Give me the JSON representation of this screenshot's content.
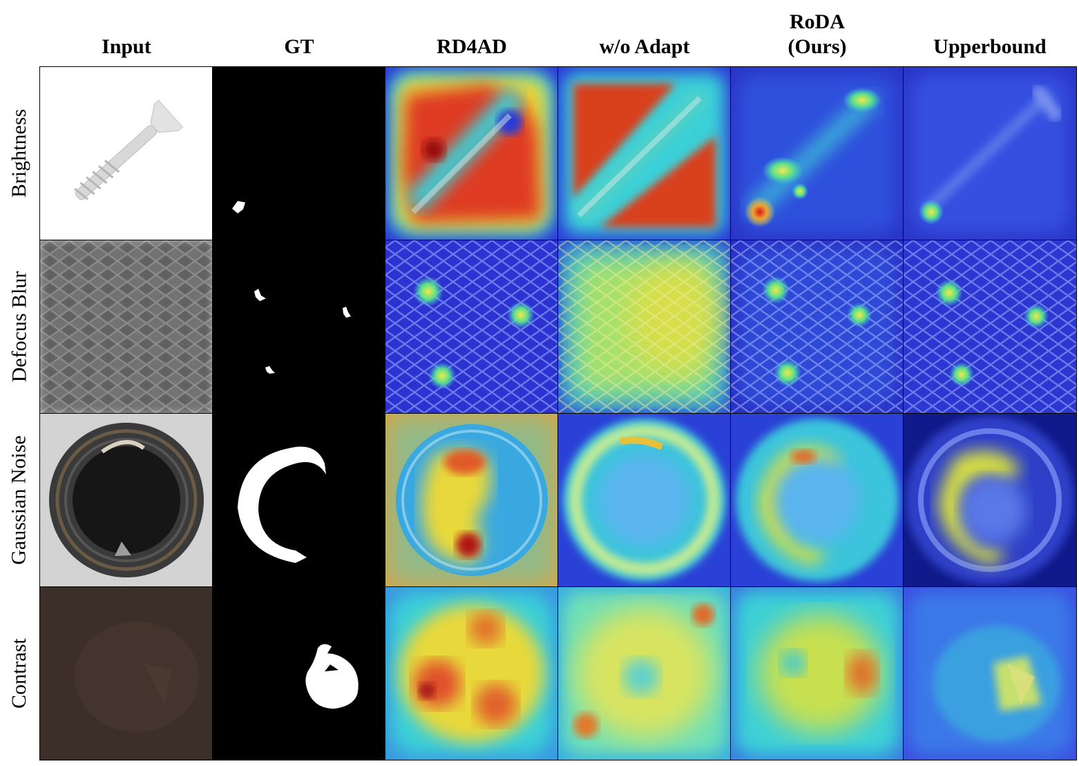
{
  "columns": [
    "Input",
    "GT",
    "RD4AD",
    "w/o Adapt",
    "RoDA\n(Ours)",
    "Upperbound"
  ],
  "rows": [
    "Brightness",
    "Defocus Blur",
    "Gaussian Noise",
    "Contrast"
  ],
  "colors": {
    "heat_low": "#2b2fd6",
    "heat_mid": "#3ad0d8",
    "heat_warm": "#e6e34a",
    "heat_high": "#d9241f",
    "mask_fg": "#ffffff",
    "mask_bg": "#000000"
  },
  "icons": [
    "screw-image",
    "metal-grid-image",
    "bottle-image",
    "hazelnut-image"
  ]
}
